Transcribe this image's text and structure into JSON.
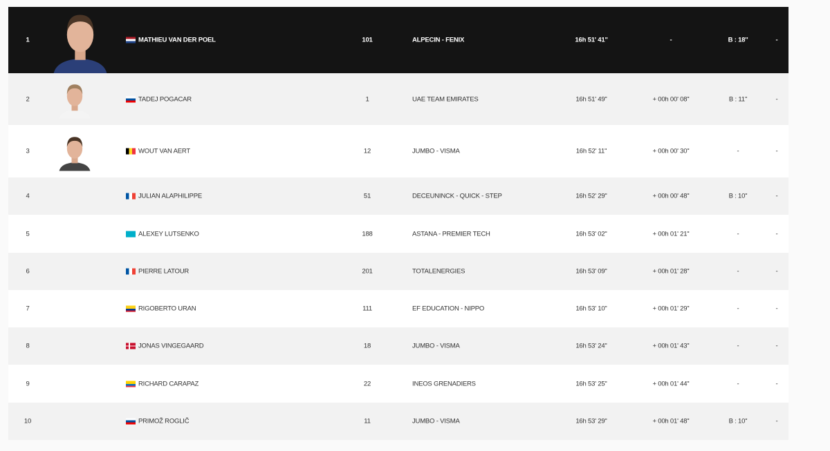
{
  "colors": {
    "leader_row_bg": "#141414",
    "alt_row_bg": "#f2f2f2",
    "row_bg": "#ffffff",
    "page_bg": "#fafafa"
  },
  "rows": [
    {
      "rank": "1",
      "rider": "MATHIEU VAN DER POEL",
      "country": "NED",
      "bib": "101",
      "team": "ALPECIN - FENIX",
      "time": "16h 51' 41''",
      "gap": "-",
      "bonus": "B : 18''",
      "penalty": "-",
      "photo": "rider-photo"
    },
    {
      "rank": "2",
      "rider": "TADEJ POGACAR",
      "country": "SLO",
      "bib": "1",
      "team": "UAE TEAM EMIRATES",
      "time": "16h 51' 49''",
      "gap": "+ 00h 00' 08''",
      "bonus": "B : 11''",
      "penalty": "-",
      "photo": "rider-photo"
    },
    {
      "rank": "3",
      "rider": "WOUT VAN AERT",
      "country": "BEL",
      "bib": "12",
      "team": "JUMBO - VISMA",
      "time": "16h 52' 11''",
      "gap": "+ 00h 00' 30''",
      "bonus": "-",
      "penalty": "-",
      "photo": "rider-photo"
    },
    {
      "rank": "4",
      "rider": "JULIAN ALAPHILIPPE",
      "country": "FRA",
      "bib": "51",
      "team": "DECEUNINCK - QUICK - STEP",
      "time": "16h 52' 29''",
      "gap": "+ 00h 00' 48''",
      "bonus": "B : 10''",
      "penalty": "-"
    },
    {
      "rank": "5",
      "rider": "ALEXEY LUTSENKO",
      "country": "KAZ",
      "bib": "188",
      "team": "ASTANA - PREMIER TECH",
      "time": "16h 53' 02''",
      "gap": "+ 00h 01' 21''",
      "bonus": "-",
      "penalty": "-"
    },
    {
      "rank": "6",
      "rider": "PIERRE LATOUR",
      "country": "FRA",
      "bib": "201",
      "team": "TOTALENERGIES",
      "time": "16h 53' 09''",
      "gap": "+ 00h 01' 28''",
      "bonus": "-",
      "penalty": "-"
    },
    {
      "rank": "7",
      "rider": "RIGOBERTO URAN",
      "country": "COL",
      "bib": "111",
      "team": "EF EDUCATION - NIPPO",
      "time": "16h 53' 10''",
      "gap": "+ 00h 01' 29''",
      "bonus": "-",
      "penalty": "-"
    },
    {
      "rank": "8",
      "rider": "JONAS VINGEGAARD",
      "country": "DEN",
      "bib": "18",
      "team": "JUMBO - VISMA",
      "time": "16h 53' 24''",
      "gap": "+ 00h 01' 43''",
      "bonus": "-",
      "penalty": "-"
    },
    {
      "rank": "9",
      "rider": "RICHARD CARAPAZ",
      "country": "ECU",
      "bib": "22",
      "team": "INEOS GRENADIERS",
      "time": "16h 53' 25''",
      "gap": "+ 00h 01' 44''",
      "bonus": "-",
      "penalty": "-"
    },
    {
      "rank": "10",
      "rider": "PRIMOŽ ROGLIČ",
      "country": "SLO",
      "bib": "11",
      "team": "JUMBO - VISMA",
      "time": "16h 53' 29''",
      "gap": "+ 00h 01' 48''",
      "bonus": "B : 10''",
      "penalty": "-"
    }
  ]
}
